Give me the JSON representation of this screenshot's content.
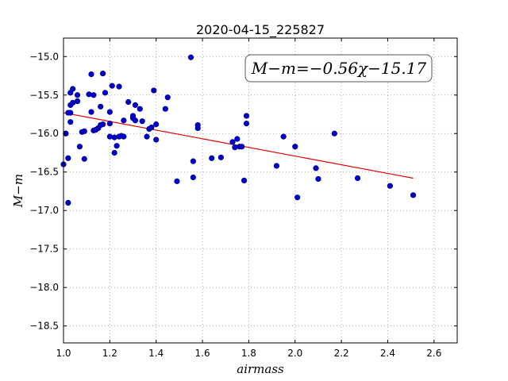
{
  "chart_data": {
    "type": "scatter",
    "title": "2020-04-15_225827",
    "xlabel": "airmass",
    "ylabel": "M−m",
    "xlim": [
      1.0,
      2.7
    ],
    "ylim": [
      -18.72,
      -14.76
    ],
    "y_inverted": true,
    "grid": true,
    "xticks": [
      1.0,
      1.2,
      1.4,
      1.6,
      1.8,
      2.0,
      2.2,
      2.4,
      2.6
    ],
    "xtick_labels": [
      "1.0",
      "1.2",
      "1.4",
      "1.6",
      "1.8",
      "2.0",
      "2.2",
      "2.4",
      "2.6"
    ],
    "yticks": [
      -15.0,
      -15.5,
      -16.0,
      -16.5,
      -17.0,
      -17.5,
      -18.0,
      -18.5
    ],
    "ytick_labels": [
      "−15.0",
      "−15.5",
      "−16.0",
      "−16.5",
      "−17.0",
      "−17.5",
      "−18.0",
      "−18.5"
    ],
    "annotation": "M−m=−0.56χ−15.17",
    "colors": {
      "points": "#0000cc",
      "fit": "#dd0000"
    },
    "fit": {
      "x": [
        1.0,
        2.51
      ],
      "y": [
        -15.73,
        -16.58
      ]
    },
    "points": [
      [
        1.0,
        -16.4
      ],
      [
        1.01,
        -16.0
      ],
      [
        1.01,
        -16.0
      ],
      [
        1.02,
        -16.32
      ],
      [
        1.02,
        -16.9
      ],
      [
        1.02,
        -15.73
      ],
      [
        1.03,
        -15.85
      ],
      [
        1.03,
        -15.73
      ],
      [
        1.03,
        -15.63
      ],
      [
        1.03,
        -15.47
      ],
      [
        1.04,
        -15.6
      ],
      [
        1.04,
        -15.42
      ],
      [
        1.06,
        -15.5
      ],
      [
        1.06,
        -15.58
      ],
      [
        1.06,
        -15.58
      ],
      [
        1.07,
        -16.17
      ],
      [
        1.08,
        -15.98
      ],
      [
        1.09,
        -15.97
      ],
      [
        1.09,
        -16.33
      ],
      [
        1.11,
        -15.49
      ],
      [
        1.12,
        -15.23
      ],
      [
        1.12,
        -15.72
      ],
      [
        1.13,
        -15.5
      ],
      [
        1.13,
        -15.96
      ],
      [
        1.14,
        -15.95
      ],
      [
        1.15,
        -15.93
      ],
      [
        1.16,
        -15.89
      ],
      [
        1.16,
        -15.65
      ],
      [
        1.17,
        -15.22
      ],
      [
        1.17,
        -15.88
      ],
      [
        1.18,
        -15.47
      ],
      [
        1.2,
        -15.72
      ],
      [
        1.2,
        -15.87
      ],
      [
        1.2,
        -16.04
      ],
      [
        1.21,
        -15.38
      ],
      [
        1.22,
        -16.25
      ],
      [
        1.22,
        -16.05
      ],
      [
        1.23,
        -16.16
      ],
      [
        1.24,
        -15.39
      ],
      [
        1.24,
        -16.04
      ],
      [
        1.25,
        -16.03
      ],
      [
        1.26,
        -15.83
      ],
      [
        1.26,
        -16.04
      ],
      [
        1.28,
        -15.59
      ],
      [
        1.3,
        -15.8
      ],
      [
        1.3,
        -15.77
      ],
      [
        1.31,
        -15.63
      ],
      [
        1.31,
        -15.83
      ],
      [
        1.33,
        -15.68
      ],
      [
        1.34,
        -15.84
      ],
      [
        1.36,
        -16.04
      ],
      [
        1.37,
        -15.94
      ],
      [
        1.38,
        -15.92
      ],
      [
        1.39,
        -15.44
      ],
      [
        1.4,
        -15.88
      ],
      [
        1.4,
        -16.08
      ],
      [
        1.44,
        -15.68
      ],
      [
        1.45,
        -15.53
      ],
      [
        1.49,
        -16.62
      ],
      [
        1.55,
        -15.01
      ],
      [
        1.56,
        -16.36
      ],
      [
        1.56,
        -16.57
      ],
      [
        1.58,
        -15.93
      ],
      [
        1.58,
        -15.89
      ],
      [
        1.64,
        -16.32
      ],
      [
        1.68,
        -16.31
      ],
      [
        1.73,
        -16.11
      ],
      [
        1.74,
        -16.18
      ],
      [
        1.75,
        -16.07
      ],
      [
        1.76,
        -16.17
      ],
      [
        1.77,
        -16.17
      ],
      [
        1.78,
        -16.61
      ],
      [
        1.79,
        -15.77
      ],
      [
        1.79,
        -15.87
      ],
      [
        1.92,
        -16.42
      ],
      [
        1.95,
        -16.04
      ],
      [
        2.0,
        -16.17
      ],
      [
        2.01,
        -16.83
      ],
      [
        2.09,
        -16.45
      ],
      [
        2.1,
        -16.59
      ],
      [
        2.17,
        -16.0
      ],
      [
        2.27,
        -16.58
      ],
      [
        2.41,
        -16.68
      ],
      [
        2.51,
        -16.8
      ]
    ]
  }
}
